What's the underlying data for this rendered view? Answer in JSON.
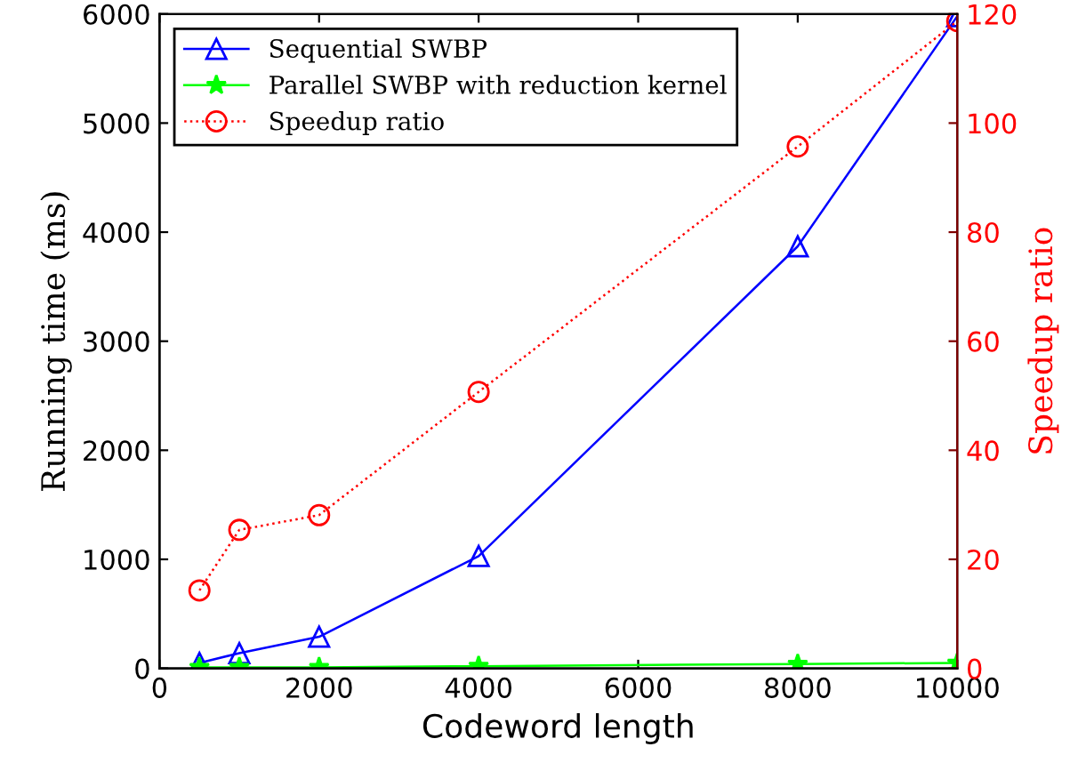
{
  "chart_data": {
    "type": "line",
    "xlabel": "Codeword length",
    "ylabel": "Running time (ms)",
    "y2label": "Speedup ratio",
    "x": [
      500,
      1000,
      2000,
      4000,
      8000,
      10000
    ],
    "xlim": [
      0,
      10000
    ],
    "xticks": [
      0,
      2000,
      4000,
      6000,
      8000,
      10000
    ],
    "ylim": [
      0,
      6000
    ],
    "yticks": [
      0,
      1000,
      2000,
      3000,
      4000,
      5000,
      6000
    ],
    "y2lim": [
      0,
      120
    ],
    "y2ticks": [
      0,
      20,
      40,
      60,
      80,
      100,
      120
    ],
    "grid": false,
    "legend": "top left",
    "series": [
      {
        "name": "Sequential SWBP",
        "color": "#0000ff",
        "marker": "triangle",
        "line_style": "solid",
        "values": [
          50,
          140,
          290,
          1030,
          3870,
          5980
        ]
      },
      {
        "name": "Parallel SWBP with reduction kernel",
        "color": "#00ff00",
        "marker": "star",
        "line_style": "solid",
        "values": [
          10,
          10,
          10,
          20,
          40,
          50
        ]
      },
      {
        "name": "Speedup ratio",
        "color": "#ff0000",
        "marker": "circle",
        "line_style": "dotted",
        "axis": "y2",
        "values": [
          14.3,
          25.4,
          28.1,
          50.7,
          95.7,
          118.7
        ]
      }
    ]
  }
}
